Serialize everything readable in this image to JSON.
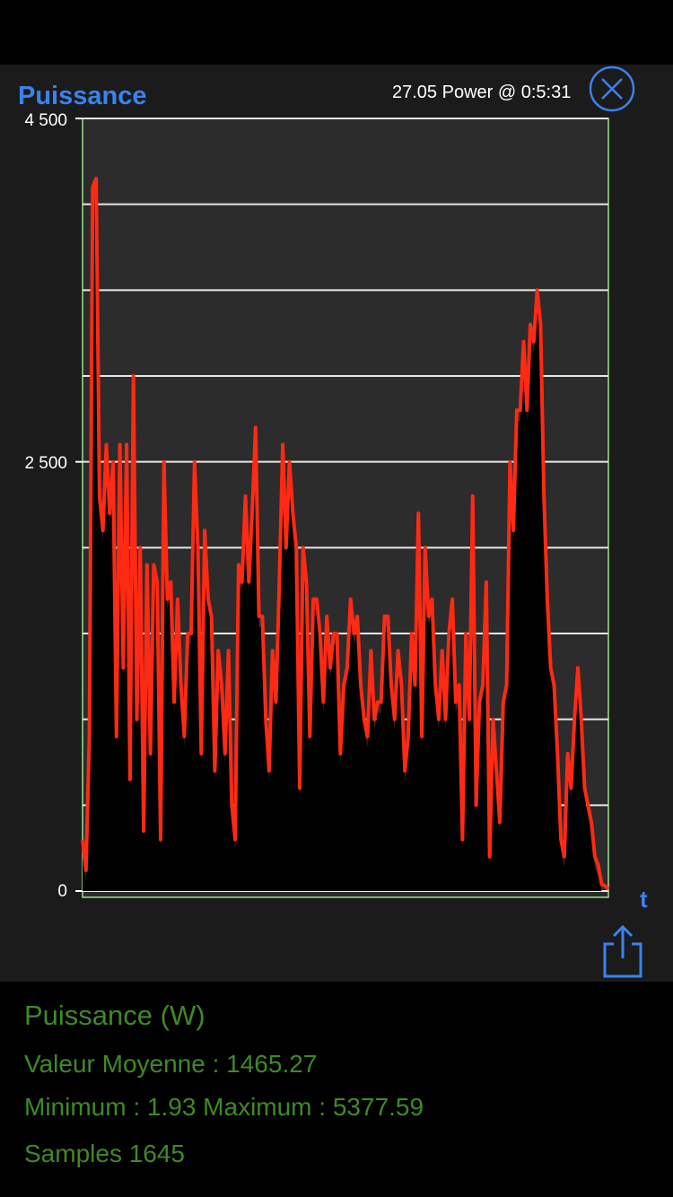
{
  "header": {
    "title": "Puissance",
    "cursor_readout": "27.05 Power @ 0:5:31"
  },
  "axis": {
    "y_ticks": [
      "4 500",
      "2 500",
      "0"
    ],
    "x_label": "t"
  },
  "stats": {
    "heading": "Puissance (W)",
    "average": "Valeur Moyenne : 1465.27",
    "minmax": "Minimum : 1.93 Maximum : 5377.59",
    "samples": "Samples 1645"
  },
  "icons": {
    "close": "close-circle-x-icon",
    "share": "share-icon"
  },
  "colors": {
    "title": "#3b82f0",
    "series": "#ff2a14",
    "stats_text": "#3e8a24",
    "plot_bg": "#2c2c2c"
  },
  "chart_data": {
    "type": "area",
    "title": "Puissance",
    "xlabel": "t",
    "ylabel": "",
    "ylim": [
      0,
      4500
    ],
    "y_ticks": [
      0,
      2500,
      4500
    ],
    "grid": true,
    "series": [
      {
        "values": [
          300,
          120,
          900,
          4100,
          4150,
          2300,
          2100,
          2600,
          2200,
          2500,
          900,
          2600,
          1300,
          2600,
          650,
          3000,
          1000,
          2000,
          350,
          1900,
          800,
          1900,
          1800,
          300,
          2500,
          1700,
          1800,
          1100,
          1700,
          1200,
          900,
          1500,
          1500,
          2500,
          2000,
          800,
          2100,
          1700,
          1600,
          700,
          1400,
          1200,
          800,
          1400,
          500,
          300,
          1900,
          1800,
          2300,
          1800,
          2200,
          2700,
          1600,
          1600,
          1000,
          700,
          1400,
          1100,
          1800,
          2600,
          2000,
          2500,
          2200,
          2000,
          600,
          2000,
          1800,
          900,
          1700,
          1700,
          1500,
          1100,
          1600,
          1300,
          1500,
          1500,
          800,
          1200,
          1300,
          1700,
          1500,
          1600,
          1200,
          1000,
          900,
          1400,
          1000,
          1100,
          1100,
          1600,
          1600,
          1200,
          1000,
          1400,
          1200,
          700,
          900,
          1500,
          1200,
          2200,
          900,
          2000,
          1600,
          1700,
          1200,
          1000,
          1400,
          1000,
          1500,
          1700,
          1100,
          1200,
          300,
          1500,
          1000,
          2300,
          500,
          1100,
          1200,
          1800,
          200,
          1000,
          700,
          400,
          1100,
          1200,
          2500,
          2100,
          2800,
          2800,
          3200,
          2800,
          3300,
          3200,
          3500,
          3300,
          2300,
          1700,
          1300,
          1200,
          800,
          300,
          200,
          800,
          600,
          1000,
          1300,
          1000,
          600,
          500,
          400,
          200,
          150,
          40,
          30,
          10
        ]
      }
    ]
  }
}
